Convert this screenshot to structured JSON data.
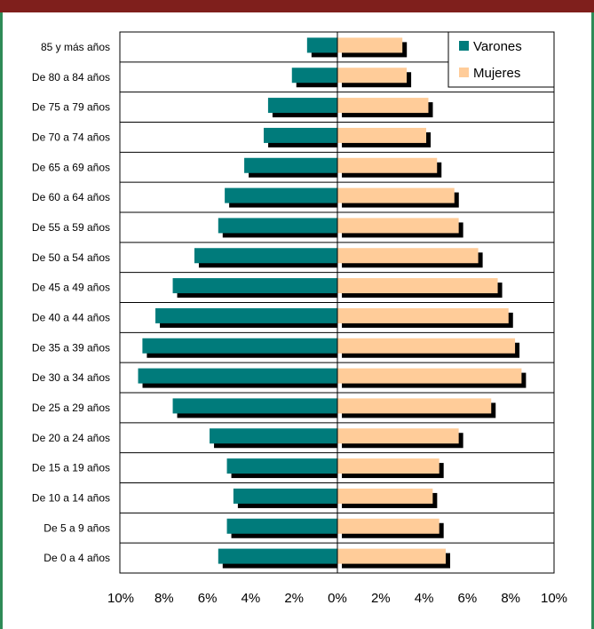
{
  "colors": {
    "varones": "#007b7b",
    "mujeres": "#ffcc99",
    "shadow": "#000000",
    "top_bar": "#7f1f1c",
    "frame_edge": "#2e8b57"
  },
  "chart_data": {
    "type": "bar",
    "orientation": "horizontal",
    "subtype": "population-pyramid",
    "categories": [
      "85 y más años",
      "De 80 a 84 años",
      "De 75 a 79 años",
      "De 70 a 74 años",
      "De 65 a 69 años",
      "De 60 a 64 años",
      "De 55 a 59 años",
      "De 50 a 54 años",
      "De 45 a 49 años",
      "De 40 a 44 años",
      "De 35 a 39 años",
      "De 30 a 34 años",
      "De 25 a 29 años",
      "De 20 a 24 años",
      "De 15 a 19 años",
      "De 10 a 14 años",
      "De 5 a 9 años",
      "De 0 a 4 años"
    ],
    "series": [
      {
        "name": "Varones",
        "side": "left",
        "values": [
          1.4,
          2.1,
          3.2,
          3.4,
          4.3,
          5.2,
          5.5,
          6.6,
          7.6,
          8.4,
          9.0,
          9.2,
          7.6,
          5.9,
          5.1,
          4.8,
          5.1,
          5.5
        ]
      },
      {
        "name": "Mujeres",
        "side": "right",
        "values": [
          3.0,
          3.2,
          4.2,
          4.1,
          4.6,
          5.4,
          5.6,
          6.5,
          7.4,
          7.9,
          8.2,
          8.5,
          7.1,
          5.6,
          4.7,
          4.4,
          4.7,
          5.0
        ]
      }
    ],
    "x_ticks": [
      "10%",
      "8%",
      "6%",
      "4%",
      "2%",
      "0%",
      "2%",
      "4%",
      "6%",
      "8%",
      "10%"
    ],
    "xlim": [
      -10,
      10
    ],
    "unit": "%",
    "bar_shadow": true,
    "grid": "horizontal",
    "legend": {
      "position": "top-right",
      "entries": [
        "Varones",
        "Mujeres"
      ]
    }
  }
}
